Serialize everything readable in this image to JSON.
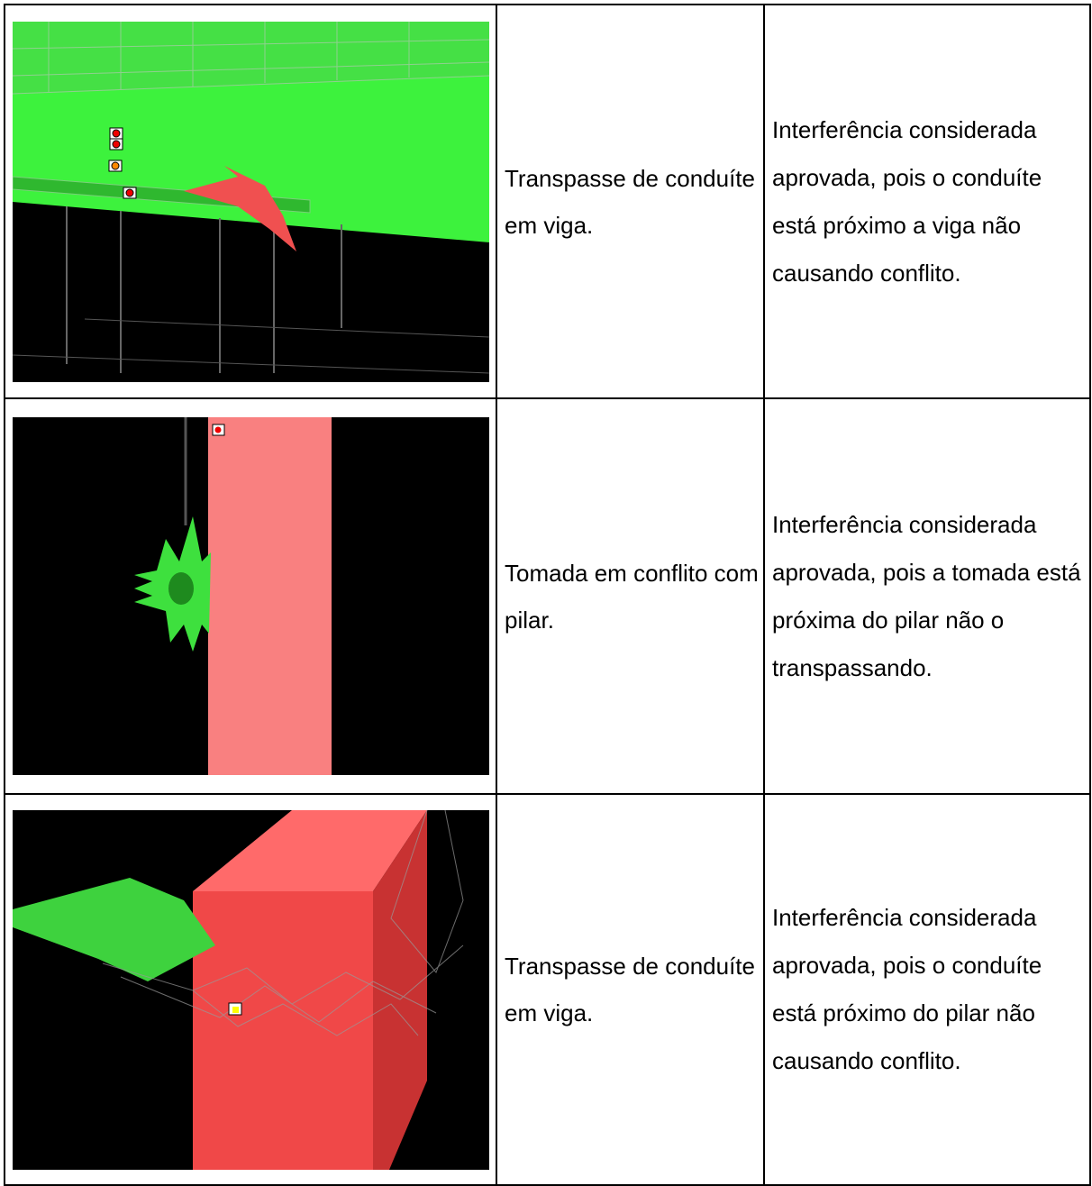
{
  "table": {
    "rows": [
      [
        "Transpasse de conduíte em viga.",
        "Interferência considerada aprovada, pois o conduíte está próximo a viga não causando conflito."
      ],
      [
        "Tomada em conflito com pilar.",
        "Interferência considerada aprovada, pois a tomada está próxima do pilar não o transpassando."
      ],
      [
        "Transpasse de conduíte em viga.",
        "Interferência considerada aprovada, pois o conduíte está próximo do pilar não causando conflito."
      ]
    ]
  }
}
